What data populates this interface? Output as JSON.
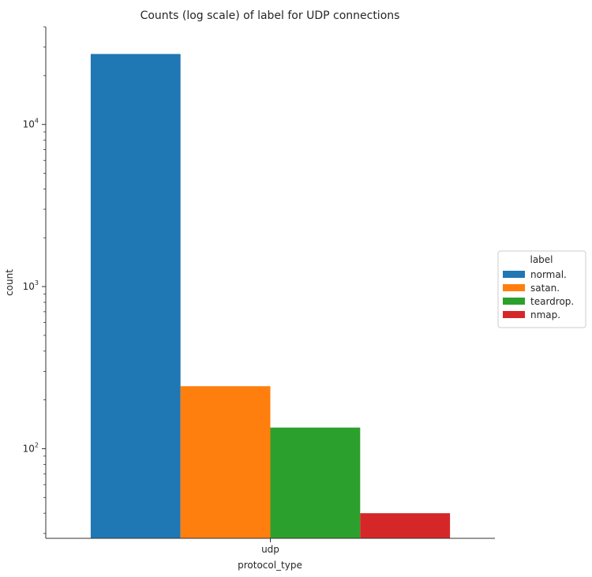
{
  "chart_data": {
    "type": "bar",
    "title": "Counts (log scale) of label for UDP connections",
    "xlabel": "protocol_type",
    "ylabel": "count",
    "y_scale": "log",
    "ylim": [
      28,
      40000
    ],
    "categories": [
      "udp"
    ],
    "series": [
      {
        "name": "normal.",
        "values": [
          27200
        ],
        "color": "#1f77b4"
      },
      {
        "name": "satan.",
        "values": [
          243
        ],
        "color": "#ff7f0e"
      },
      {
        "name": "teardrop.",
        "values": [
          135
        ],
        "color": "#2ca02c"
      },
      {
        "name": "nmap.",
        "values": [
          40
        ],
        "color": "#d62728"
      }
    ],
    "y_ticks": [
      {
        "base": "10",
        "exp": "2",
        "value": 100
      },
      {
        "base": "10",
        "exp": "3",
        "value": 1000
      },
      {
        "base": "10",
        "exp": "4",
        "value": 10000
      }
    ],
    "legend_title": "label",
    "legend_position": "right",
    "grid": false,
    "spines": [
      "left",
      "bottom"
    ]
  }
}
